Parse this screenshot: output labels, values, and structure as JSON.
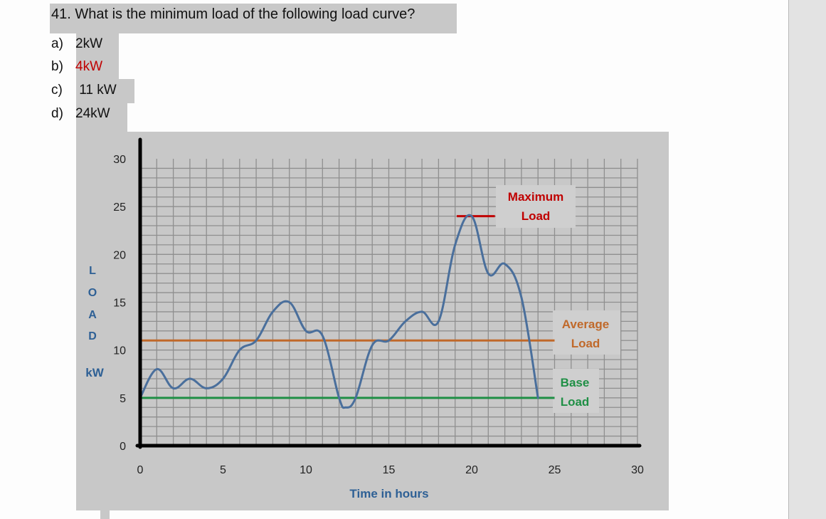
{
  "question": {
    "text": "41. What is the minimum load of the following load curve?",
    "options": [
      {
        "letter": "a)",
        "value": "2kW",
        "correct": false
      },
      {
        "letter": "b)",
        "value": "4kW",
        "correct": true
      },
      {
        "letter": "c)",
        "value": " 11 kW",
        "correct": false
      },
      {
        "letter": "d)",
        "value": "24kW",
        "correct": false
      }
    ]
  },
  "colors": {
    "curve": "#4a6f9c",
    "average_line": "#c0692a",
    "base_line": "#1f8f45",
    "max_line": "#c00000",
    "axis_label": "#2e6095",
    "panel": "#c8c8c8",
    "correct_answer": "#c00000"
  },
  "chart_data": {
    "type": "line",
    "title": "",
    "xlabel": "Time in hours",
    "ylabel": "LOAD kW",
    "ylabel_letters": [
      "L",
      "O",
      "A",
      "D"
    ],
    "ylabel_unit": "kW",
    "xlim": [
      0,
      30
    ],
    "ylim": [
      0,
      30
    ],
    "x_ticks": [
      0,
      5,
      10,
      15,
      20,
      25,
      30
    ],
    "y_ticks": [
      0,
      5,
      10,
      15,
      20,
      25,
      30
    ],
    "grid": true,
    "series": [
      {
        "name": "Load curve",
        "x": [
          0,
          1,
          2,
          3,
          4,
          5,
          6,
          7,
          8,
          9,
          10,
          11,
          12,
          12.4,
          13,
          14,
          15,
          16,
          17,
          18,
          19,
          20,
          21,
          22,
          23,
          24
        ],
        "values": [
          5,
          8,
          6,
          7,
          6,
          7,
          10,
          11,
          14,
          15,
          12,
          11.5,
          5,
          4,
          5,
          10.5,
          11,
          13,
          14,
          13,
          21,
          24,
          18,
          19,
          15.5,
          5
        ]
      }
    ],
    "reference_lines": [
      {
        "name": "Maximum Load",
        "y": 24,
        "x_from": 19.1,
        "x_to": 21.4
      },
      {
        "name": "Average Load",
        "y": 11,
        "x_from": 0,
        "x_to": 25
      },
      {
        "name": "Base Load",
        "y": 5,
        "x_from": 0,
        "x_to": 25
      }
    ],
    "annotations": [
      {
        "label_line1": "Maximum",
        "label_line2": "Load",
        "color": "#c00000"
      },
      {
        "label_line1": "Average",
        "label_line2": "Load",
        "color": "#c0692a"
      },
      {
        "label_line1": "Base",
        "label_line2": "Load",
        "color": "#1f8f45"
      }
    ]
  }
}
